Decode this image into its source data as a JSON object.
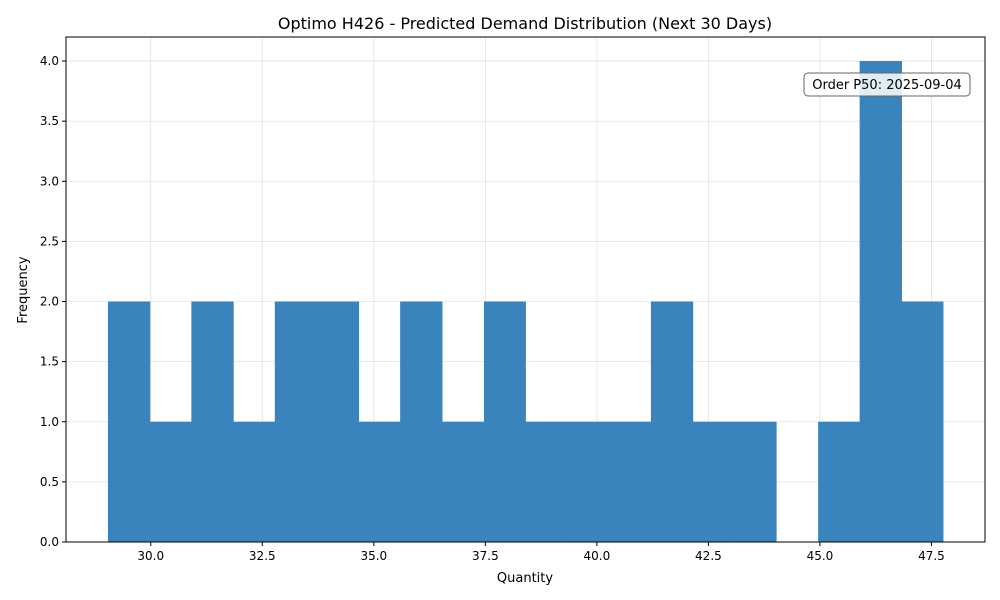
{
  "chart_data": {
    "type": "bar",
    "title": "Optimo H426 - Predicted Demand Distribution (Next 30 Days)",
    "xlabel": "Quantity",
    "ylabel": "Frequency",
    "xlim": [
      28.1,
      48.7
    ],
    "ylim": [
      0,
      4.2
    ],
    "x_ticks": [
      "30.0",
      "32.5",
      "35.0",
      "37.5",
      "40.0",
      "42.5",
      "45.0",
      "47.5"
    ],
    "x_tick_values": [
      30.0,
      32.5,
      35.0,
      37.5,
      40.0,
      42.5,
      45.0,
      47.5
    ],
    "y_ticks": [
      "0.0",
      "0.5",
      "1.0",
      "1.5",
      "2.0",
      "2.5",
      "3.0",
      "3.5",
      "4.0"
    ],
    "y_tick_values": [
      0.0,
      0.5,
      1.0,
      1.5,
      2.0,
      2.5,
      3.0,
      3.5,
      4.0
    ],
    "grid": true,
    "bar_color": "#3682BC",
    "bins": [
      {
        "x0": 29.04,
        "x1": 29.98,
        "count": 2
      },
      {
        "x0": 29.98,
        "x1": 30.91,
        "count": 1
      },
      {
        "x0": 30.91,
        "x1": 31.85,
        "count": 2
      },
      {
        "x0": 31.85,
        "x1": 32.78,
        "count": 1
      },
      {
        "x0": 32.78,
        "x1": 33.72,
        "count": 2
      },
      {
        "x0": 33.72,
        "x1": 34.66,
        "count": 2
      },
      {
        "x0": 34.66,
        "x1": 35.59,
        "count": 1
      },
      {
        "x0": 35.59,
        "x1": 36.53,
        "count": 2
      },
      {
        "x0": 36.53,
        "x1": 37.47,
        "count": 1
      },
      {
        "x0": 37.47,
        "x1": 38.4,
        "count": 2
      },
      {
        "x0": 38.4,
        "x1": 39.34,
        "count": 1
      },
      {
        "x0": 39.34,
        "x1": 40.27,
        "count": 1
      },
      {
        "x0": 40.27,
        "x1": 41.21,
        "count": 1
      },
      {
        "x0": 41.21,
        "x1": 42.15,
        "count": 2
      },
      {
        "x0": 42.15,
        "x1": 43.08,
        "count": 1
      },
      {
        "x0": 43.08,
        "x1": 44.02,
        "count": 1
      },
      {
        "x0": 44.02,
        "x1": 44.96,
        "count": 0
      },
      {
        "x0": 44.96,
        "x1": 45.89,
        "count": 1
      },
      {
        "x0": 45.89,
        "x1": 46.83,
        "count": 4
      },
      {
        "x0": 46.83,
        "x1": 47.76,
        "count": 2
      }
    ],
    "annotation": {
      "text": "Order P50: 2025-09-04",
      "placement": "top-right"
    }
  }
}
